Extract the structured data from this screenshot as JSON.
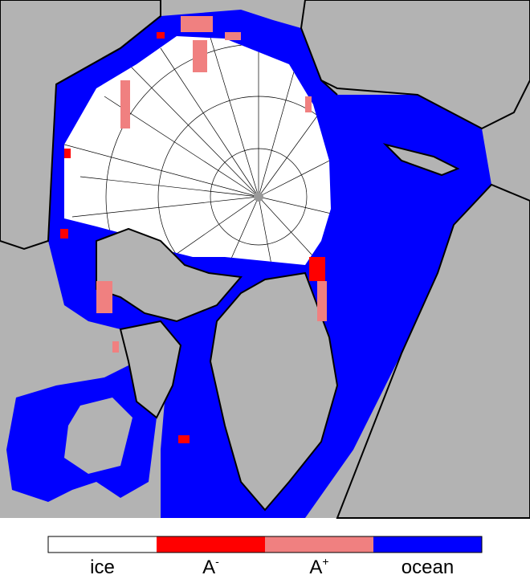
{
  "legend": {
    "items": [
      {
        "label": "ice",
        "color": "#ffffff"
      },
      {
        "label": "A",
        "superscript": "-",
        "color": "#ff0000"
      },
      {
        "label": "A",
        "superscript": "+",
        "color": "#f08080"
      },
      {
        "label": "ocean",
        "color": "#0000ff"
      }
    ]
  }
}
